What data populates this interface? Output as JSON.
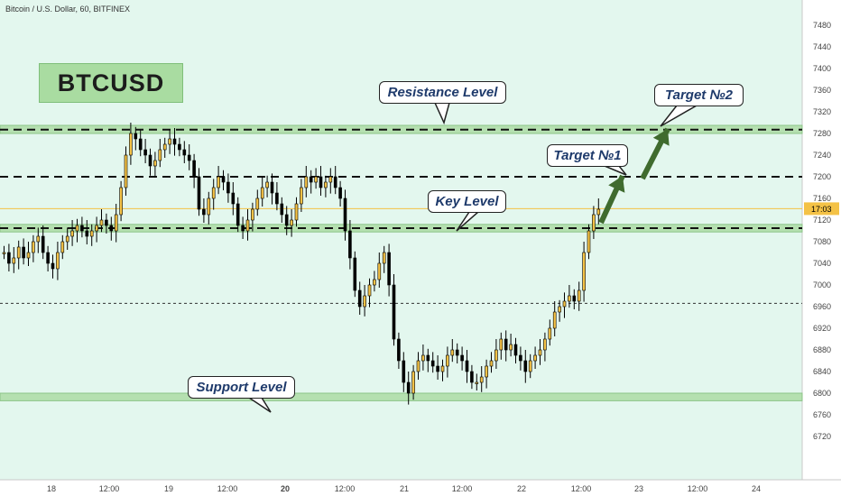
{
  "header": {
    "symbol_line": "Bitcoin / U.S. Dollar, 60, BITFINEX"
  },
  "badge": {
    "label": "BTCUSD"
  },
  "callouts": {
    "resistance": "Resistance Level",
    "key": "Key Level",
    "support": "Support Level",
    "target1": "Target №1",
    "target2": "Target №2"
  },
  "price_tag": {
    "label": "17:03"
  },
  "colors": {
    "background": "#e3f7ee",
    "zone_fill": "#b5e0b0",
    "up_candle": "#f4c246",
    "down_candle": "#000000",
    "arrow": "#3f6b2e",
    "price_tag": "#f4c246"
  },
  "chart_data": {
    "type": "candlestick",
    "title": "Bitcoin / U.S. Dollar, 60, BITFINEX",
    "ylim": [
      6680,
      7500
    ],
    "y_ticks": [
      7480,
      7440,
      7400,
      7360,
      7320,
      7280,
      7240,
      7200,
      7160,
      7120,
      7080,
      7040,
      7000,
      6960,
      6920,
      6880,
      6840,
      6800,
      6760,
      6720
    ],
    "x_ticks": [
      "18",
      "12:00",
      "19",
      "12:00",
      "20",
      "12:00",
      "21",
      "12:00",
      "22",
      "12:00",
      "23",
      "12:00",
      "24"
    ],
    "grid": false,
    "zones": [
      {
        "name": "Resistance Level",
        "from": 7280,
        "to": 7295
      },
      {
        "name": "Key Level",
        "from": 7098,
        "to": 7112
      },
      {
        "name": "Support Level",
        "from": 6786,
        "to": 6800
      }
    ],
    "dashed_levels": [
      7287,
      7200,
      7105
    ],
    "dotted_levels": [
      6966
    ],
    "current_price": 7141,
    "targets": [
      {
        "name": "Target №1",
        "price": 7200
      },
      {
        "name": "Target №2",
        "price": 7280
      }
    ],
    "closes": [
      7060,
      7040,
      7050,
      7070,
      7050,
      7060,
      7080,
      7090,
      7060,
      7040,
      7030,
      7060,
      7080,
      7090,
      7100,
      7110,
      7100,
      7090,
      7100,
      7110,
      7120,
      7110,
      7100,
      7130,
      7180,
      7240,
      7280,
      7270,
      7250,
      7240,
      7220,
      7230,
      7250,
      7260,
      7270,
      7260,
      7250,
      7240,
      7230,
      7200,
      7140,
      7130,
      7160,
      7180,
      7200,
      7190,
      7170,
      7150,
      7110,
      7100,
      7120,
      7140,
      7160,
      7180,
      7190,
      7170,
      7150,
      7130,
      7110,
      7120,
      7150,
      7180,
      7200,
      7190,
      7200,
      7180,
      7190,
      7200,
      7180,
      7160,
      7100,
      7050,
      6990,
      6960,
      6980,
      7000,
      7010,
      7040,
      7060,
      7000,
      6900,
      6860,
      6820,
      6800,
      6840,
      6860,
      6870,
      6860,
      6850,
      6840,
      6850,
      6870,
      6880,
      6870,
      6860,
      6840,
      6820,
      6820,
      6830,
      6850,
      6860,
      6880,
      6900,
      6880,
      6890,
      6870,
      6860,
      6840,
      6860,
      6870,
      6880,
      6900,
      6920,
      6950,
      6960,
      6970,
      6980,
      6970,
      6990,
      7060,
      7100,
      7130,
      7140
    ]
  }
}
